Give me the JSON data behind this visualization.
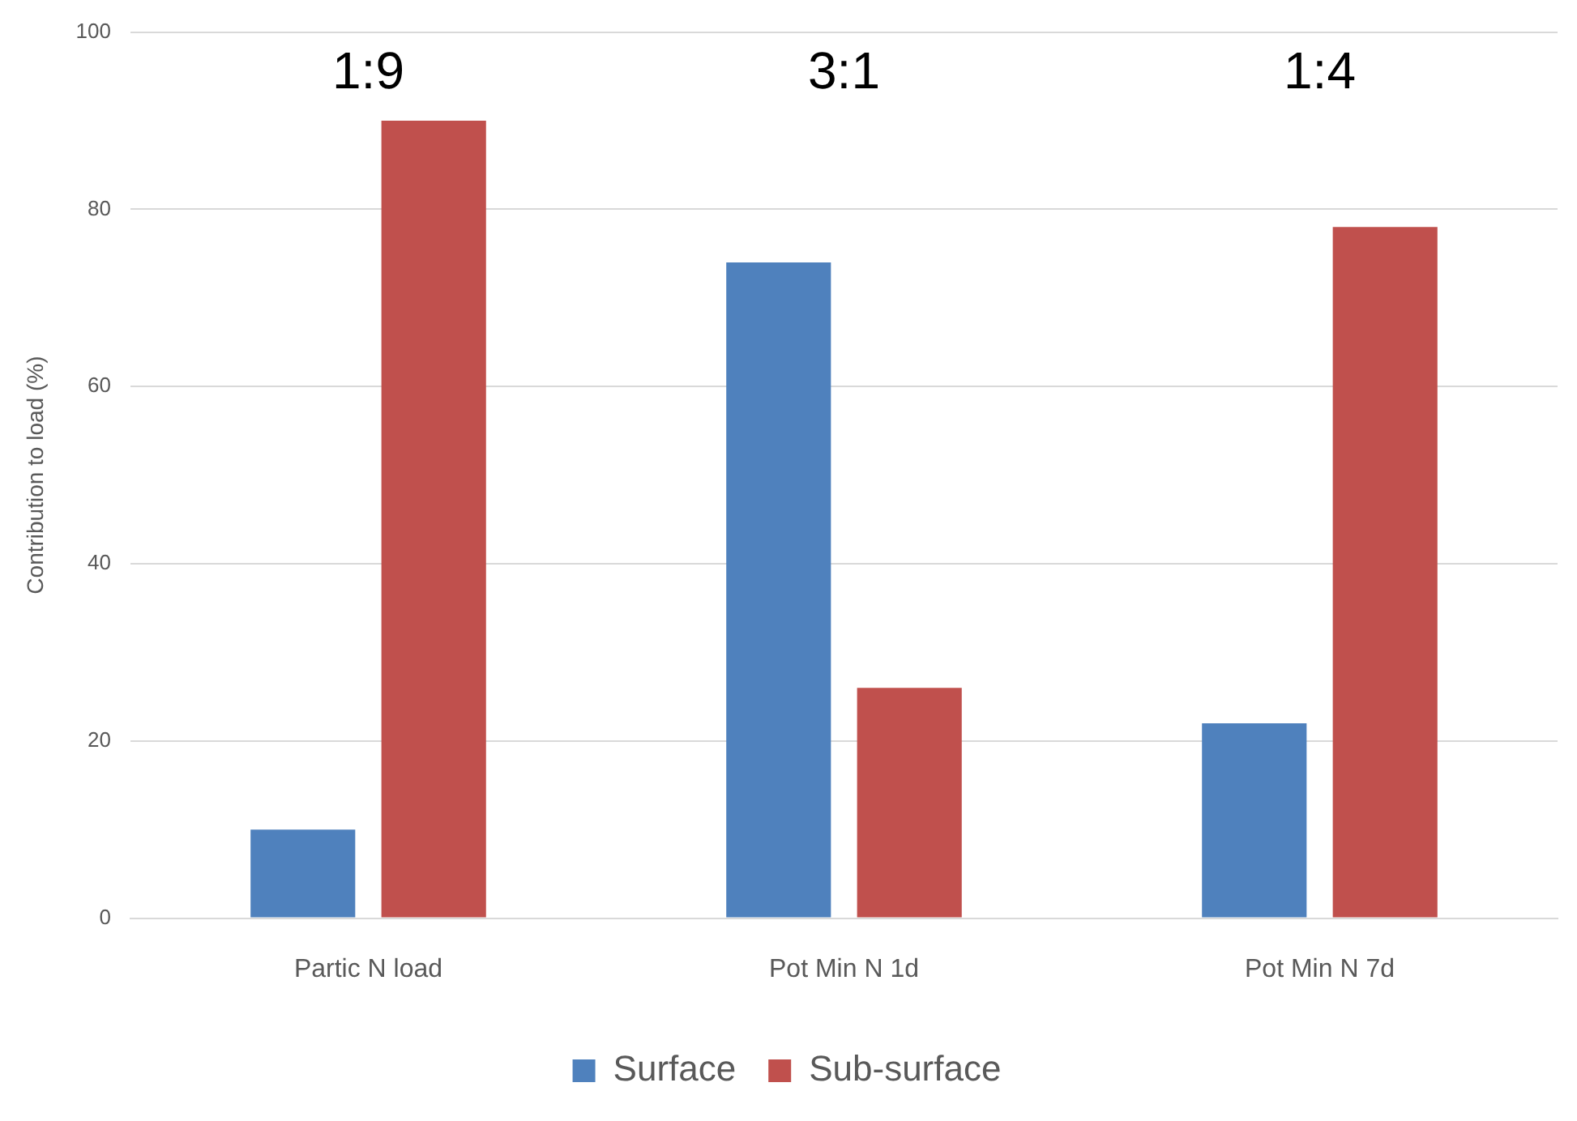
{
  "chart_data": {
    "type": "bar",
    "ylabel": "Contribution to load (%)",
    "categories": [
      "Partic N load",
      "Pot Min N 1d",
      "Pot Min N 7d"
    ],
    "series": [
      {
        "name": "Surface",
        "color": "#4f81bd",
        "values": [
          10,
          74,
          22
        ]
      },
      {
        "name": "Sub-surface",
        "color": "#c0504d",
        "values": [
          90,
          26,
          78
        ]
      }
    ],
    "ylim": [
      0,
      100
    ],
    "yticks": [
      0,
      20,
      40,
      60,
      80,
      100
    ],
    "grid": "y",
    "legend": "bottom",
    "annotations": [
      "1:9",
      "3:1",
      "1:4"
    ]
  }
}
